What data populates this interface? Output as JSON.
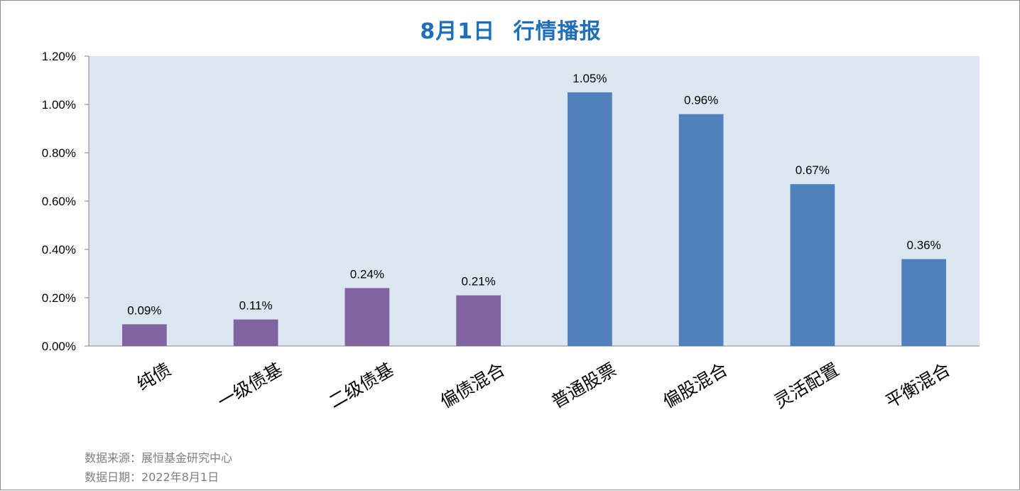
{
  "title": "8月1日 行情播报",
  "footer": {
    "source": "数据来源：展恒基金研究中心",
    "date": "数据日期：2022年8月1日"
  },
  "colors": {
    "plot_background": "#dce6f1",
    "bond_bar": "#8064a2",
    "equity_bar": "#4f81bd",
    "title": "#1f6fb8"
  },
  "chart_data": {
    "type": "bar",
    "title": "8月1日 行情播报",
    "xlabel": "",
    "ylabel": "",
    "ylim": [
      0,
      0.012
    ],
    "y_ticks": [
      0,
      0.002,
      0.004,
      0.006,
      0.008,
      0.01,
      0.012
    ],
    "y_tick_labels": [
      "0.00%",
      "0.20%",
      "0.40%",
      "0.60%",
      "0.80%",
      "1.00%",
      "1.20%"
    ],
    "grid": false,
    "legend": "none",
    "categories": [
      "纯债",
      "一级债基",
      "二级债基",
      "偏债混合",
      "普通股票",
      "偏股混合",
      "灵活配置",
      "平衡混合"
    ],
    "values": [
      0.0009,
      0.0011,
      0.0024,
      0.0021,
      0.0105,
      0.0096,
      0.0067,
      0.0036
    ],
    "data_labels": [
      "0.09%",
      "0.11%",
      "0.24%",
      "0.21%",
      "1.05%",
      "0.96%",
      "0.67%",
      "0.36%"
    ],
    "bar_colors": [
      "#8064a2",
      "#8064a2",
      "#8064a2",
      "#8064a2",
      "#4f81bd",
      "#4f81bd",
      "#4f81bd",
      "#4f81bd"
    ]
  }
}
